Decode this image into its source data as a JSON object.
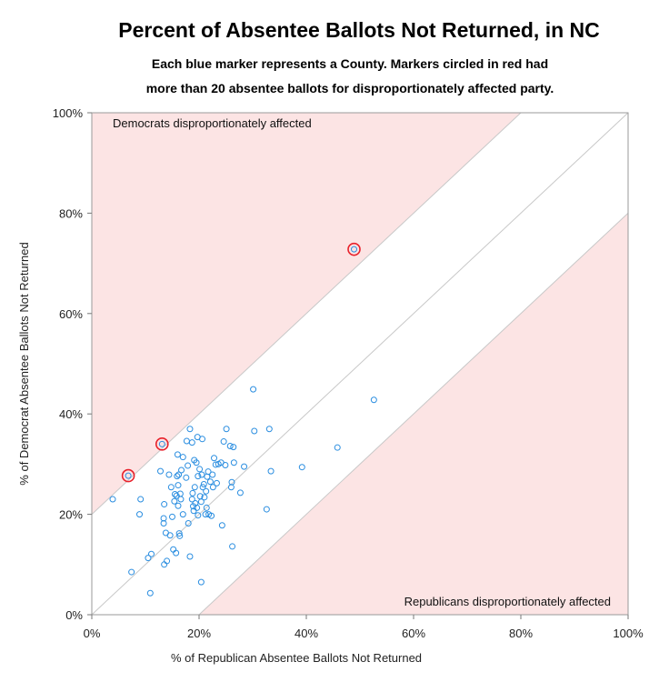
{
  "chart_data": {
    "type": "scatter",
    "title": "Percent of Absentee Ballots Not Returned, in NC",
    "subtitle_lines": [
      "Each blue marker represents a County. Markers circled in red had",
      "more than 20 absentee ballots for disproportionately affected party."
    ],
    "xlabel": "% of Republican Absentee Ballots Not Returned",
    "ylabel": "% of Democrat Absentee Ballots Not Returned",
    "xlim": [
      0,
      100
    ],
    "ylim": [
      0,
      100
    ],
    "x_ticks": [
      0,
      20,
      40,
      60,
      80,
      100
    ],
    "y_ticks": [
      0,
      20,
      40,
      60,
      80,
      100
    ],
    "x_tick_labels": [
      "0%",
      "20%",
      "40%",
      "60%",
      "80%",
      "100%"
    ],
    "y_tick_labels": [
      "0%",
      "20%",
      "40%",
      "60%",
      "80%",
      "100%"
    ],
    "grid": false,
    "annotations": {
      "top_left": "Democrats disproportionately affected",
      "bottom_right": "Republicans disproportionately affected"
    },
    "shaded_region_offset": 20,
    "colors": {
      "marker": "#2b8ee0",
      "highlight": "#e8202a",
      "shade": "#fce4e4",
      "diagonal": "#c8c8c8"
    },
    "points": [
      {
        "x": 3.9,
        "y": 23.0
      },
      {
        "x": 6.8,
        "y": 27.7,
        "flag": true
      },
      {
        "x": 7.4,
        "y": 8.5
      },
      {
        "x": 8.9,
        "y": 20.0
      },
      {
        "x": 9.1,
        "y": 23.0
      },
      {
        "x": 10.5,
        "y": 11.3
      },
      {
        "x": 11.1,
        "y": 12.1
      },
      {
        "x": 10.9,
        "y": 4.3
      },
      {
        "x": 12.8,
        "y": 28.6
      },
      {
        "x": 13.1,
        "y": 34.0,
        "flag": true
      },
      {
        "x": 13.4,
        "y": 18.2
      },
      {
        "x": 13.4,
        "y": 19.2
      },
      {
        "x": 13.5,
        "y": 22.0
      },
      {
        "x": 13.5,
        "y": 10.0
      },
      {
        "x": 13.8,
        "y": 16.3
      },
      {
        "x": 14.0,
        "y": 10.7
      },
      {
        "x": 14.4,
        "y": 27.9
      },
      {
        "x": 14.6,
        "y": 15.8
      },
      {
        "x": 14.8,
        "y": 25.4
      },
      {
        "x": 15.0,
        "y": 19.5
      },
      {
        "x": 15.2,
        "y": 13.0
      },
      {
        "x": 15.4,
        "y": 22.6
      },
      {
        "x": 15.5,
        "y": 24.0
      },
      {
        "x": 15.7,
        "y": 12.3
      },
      {
        "x": 15.8,
        "y": 23.7
      },
      {
        "x": 15.9,
        "y": 27.6
      },
      {
        "x": 16.0,
        "y": 31.9
      },
      {
        "x": 16.1,
        "y": 25.8
      },
      {
        "x": 16.1,
        "y": 21.7
      },
      {
        "x": 16.2,
        "y": 27.9
      },
      {
        "x": 16.3,
        "y": 16.2
      },
      {
        "x": 16.4,
        "y": 15.7
      },
      {
        "x": 16.5,
        "y": 24.1
      },
      {
        "x": 16.6,
        "y": 23.0
      },
      {
        "x": 16.7,
        "y": 28.8
      },
      {
        "x": 17.0,
        "y": 20.0
      },
      {
        "x": 17.0,
        "y": 31.4
      },
      {
        "x": 17.6,
        "y": 27.3
      },
      {
        "x": 17.7,
        "y": 34.6
      },
      {
        "x": 17.9,
        "y": 29.7
      },
      {
        "x": 18.0,
        "y": 18.2
      },
      {
        "x": 18.3,
        "y": 37.0
      },
      {
        "x": 18.3,
        "y": 11.6
      },
      {
        "x": 18.7,
        "y": 34.3
      },
      {
        "x": 18.7,
        "y": 23.0
      },
      {
        "x": 18.8,
        "y": 24.2
      },
      {
        "x": 18.9,
        "y": 21.6
      },
      {
        "x": 19.0,
        "y": 20.7
      },
      {
        "x": 19.1,
        "y": 30.8
      },
      {
        "x": 19.2,
        "y": 25.4
      },
      {
        "x": 19.3,
        "y": 22.2
      },
      {
        "x": 19.5,
        "y": 30.3
      },
      {
        "x": 19.6,
        "y": 21.3
      },
      {
        "x": 19.7,
        "y": 35.4
      },
      {
        "x": 19.8,
        "y": 27.6
      },
      {
        "x": 19.8,
        "y": 19.8
      },
      {
        "x": 20.1,
        "y": 29.0
      },
      {
        "x": 20.2,
        "y": 23.6
      },
      {
        "x": 20.4,
        "y": 22.5
      },
      {
        "x": 20.4,
        "y": 6.5
      },
      {
        "x": 20.5,
        "y": 27.9
      },
      {
        "x": 20.6,
        "y": 35.0
      },
      {
        "x": 20.7,
        "y": 25.4
      },
      {
        "x": 20.9,
        "y": 26.0
      },
      {
        "x": 21.0,
        "y": 23.4
      },
      {
        "x": 21.2,
        "y": 20.0
      },
      {
        "x": 21.3,
        "y": 24.6
      },
      {
        "x": 21.4,
        "y": 21.3
      },
      {
        "x": 21.5,
        "y": 27.5
      },
      {
        "x": 21.7,
        "y": 28.5
      },
      {
        "x": 21.8,
        "y": 20.0
      },
      {
        "x": 22.1,
        "y": 26.5
      },
      {
        "x": 22.3,
        "y": 19.7
      },
      {
        "x": 22.5,
        "y": 27.9
      },
      {
        "x": 22.6,
        "y": 25.4
      },
      {
        "x": 22.8,
        "y": 31.2
      },
      {
        "x": 23.1,
        "y": 29.9
      },
      {
        "x": 23.3,
        "y": 26.2
      },
      {
        "x": 23.6,
        "y": 30.0
      },
      {
        "x": 24.1,
        "y": 30.3
      },
      {
        "x": 24.3,
        "y": 17.8
      },
      {
        "x": 24.6,
        "y": 34.5
      },
      {
        "x": 24.9,
        "y": 29.8
      },
      {
        "x": 25.1,
        "y": 37.0
      },
      {
        "x": 25.8,
        "y": 33.6
      },
      {
        "x": 26.0,
        "y": 25.4
      },
      {
        "x": 26.1,
        "y": 26.4
      },
      {
        "x": 26.2,
        "y": 13.6
      },
      {
        "x": 26.4,
        "y": 33.4
      },
      {
        "x": 26.5,
        "y": 30.3
      },
      {
        "x": 27.7,
        "y": 24.3
      },
      {
        "x": 28.4,
        "y": 29.5
      },
      {
        "x": 30.1,
        "y": 44.9
      },
      {
        "x": 30.3,
        "y": 36.6
      },
      {
        "x": 32.6,
        "y": 21.0
      },
      {
        "x": 33.1,
        "y": 37.0
      },
      {
        "x": 33.4,
        "y": 28.6
      },
      {
        "x": 39.2,
        "y": 29.4
      },
      {
        "x": 45.8,
        "y": 33.3
      },
      {
        "x": 48.9,
        "y": 72.8,
        "flag": true
      },
      {
        "x": 52.6,
        "y": 42.8
      }
    ]
  }
}
